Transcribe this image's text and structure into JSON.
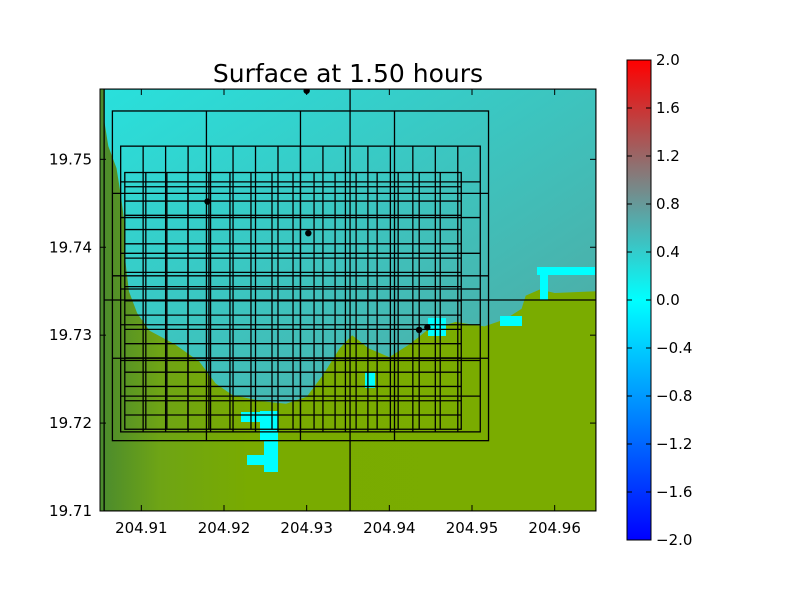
{
  "chart_data": {
    "type": "heatmap",
    "title": "Surface at 1.50 hours",
    "xlabel": "",
    "ylabel": "",
    "xlim": [
      204.905,
      204.965
    ],
    "ylim": [
      19.71,
      19.758
    ],
    "x_ticks": [
      204.91,
      204.92,
      204.93,
      204.94,
      204.95,
      204.96
    ],
    "x_tick_labels": [
      "204.91",
      "204.92",
      "204.93",
      "204.94",
      "204.95",
      "204.96"
    ],
    "y_ticks": [
      19.71,
      19.72,
      19.73,
      19.74,
      19.75
    ],
    "y_tick_labels": [
      "19.71",
      "19.72",
      "19.73",
      "19.74",
      "19.75"
    ],
    "colorbar": {
      "range": [
        -2.0,
        2.0
      ],
      "ticks": [
        2.0,
        1.6,
        1.2,
        0.8,
        0.4,
        0.0,
        -0.4,
        -0.8,
        -1.2,
        -1.6,
        -2.0
      ],
      "tick_labels": [
        "2.0",
        "1.6",
        "1.2",
        "0.8",
        "0.4",
        "0.0",
        "−0.4",
        "−0.8",
        "−1.2",
        "−1.6",
        "−2.0"
      ],
      "colors": [
        "#0000ff",
        "#00ffff",
        "#808080",
        "#ff0000"
      ]
    },
    "water_color_range": [
      "#2ee0e0",
      "#4aa8a4"
    ],
    "land_color": "#79ab00",
    "dark_land_color": "#4f8f2a",
    "shallow_water_color": "#00ffff",
    "grid_patches": [
      {
        "x": [
          204.9065,
          204.952
        ],
        "y": [
          19.718,
          19.7555
        ],
        "nx": 4,
        "ny": 4
      },
      {
        "x": [
          204.9075,
          204.951
        ],
        "y": [
          19.719,
          19.7515
        ],
        "nx": 16,
        "ny": 8
      },
      {
        "x": [
          204.908,
          204.9487
        ],
        "y": [
          19.7193,
          19.7485
        ],
        "nx": 16,
        "ny": 18
      },
      {
        "x": [
          204.9055,
          204.965
        ],
        "y": [
          19.71,
          19.758
        ],
        "nx": 2,
        "ny": 2
      }
    ],
    "gauges": [
      {
        "x": 204.93,
        "y": 19.7578
      },
      {
        "x": 204.918,
        "y": 19.7452
      },
      {
        "x": 204.9302,
        "y": 19.7416
      },
      {
        "x": 204.9436,
        "y": 19.7306
      },
      {
        "x": 204.9446,
        "y": 19.7309
      }
    ],
    "coastline": [
      [
        204.9055,
        19.7545
      ],
      [
        204.906,
        19.7515
      ],
      [
        204.907,
        19.749
      ],
      [
        204.9075,
        19.746
      ],
      [
        204.908,
        19.7425
      ],
      [
        204.908,
        19.739
      ],
      [
        204.9085,
        19.735
      ],
      [
        204.9095,
        19.7325
      ],
      [
        204.911,
        19.7305
      ],
      [
        204.914,
        19.729
      ],
      [
        204.917,
        19.727
      ],
      [
        204.919,
        19.7245
      ],
      [
        204.921,
        19.7232
      ],
      [
        204.9245,
        19.7225
      ],
      [
        204.9275,
        19.7222
      ],
      [
        204.93,
        19.723
      ],
      [
        204.932,
        19.7255
      ],
      [
        204.934,
        19.7285
      ],
      [
        204.9355,
        19.73
      ],
      [
        204.9375,
        19.7285
      ],
      [
        204.94,
        19.7275
      ],
      [
        204.9425,
        19.729
      ],
      [
        204.9445,
        19.7305
      ],
      [
        204.948,
        19.7315
      ],
      [
        204.9515,
        19.731
      ],
      [
        204.954,
        19.7318
      ],
      [
        204.956,
        19.733
      ],
      [
        204.9565,
        19.7345
      ],
      [
        204.9582,
        19.7352
      ],
      [
        204.96,
        19.7348
      ],
      [
        204.965,
        19.735
      ]
    ]
  }
}
